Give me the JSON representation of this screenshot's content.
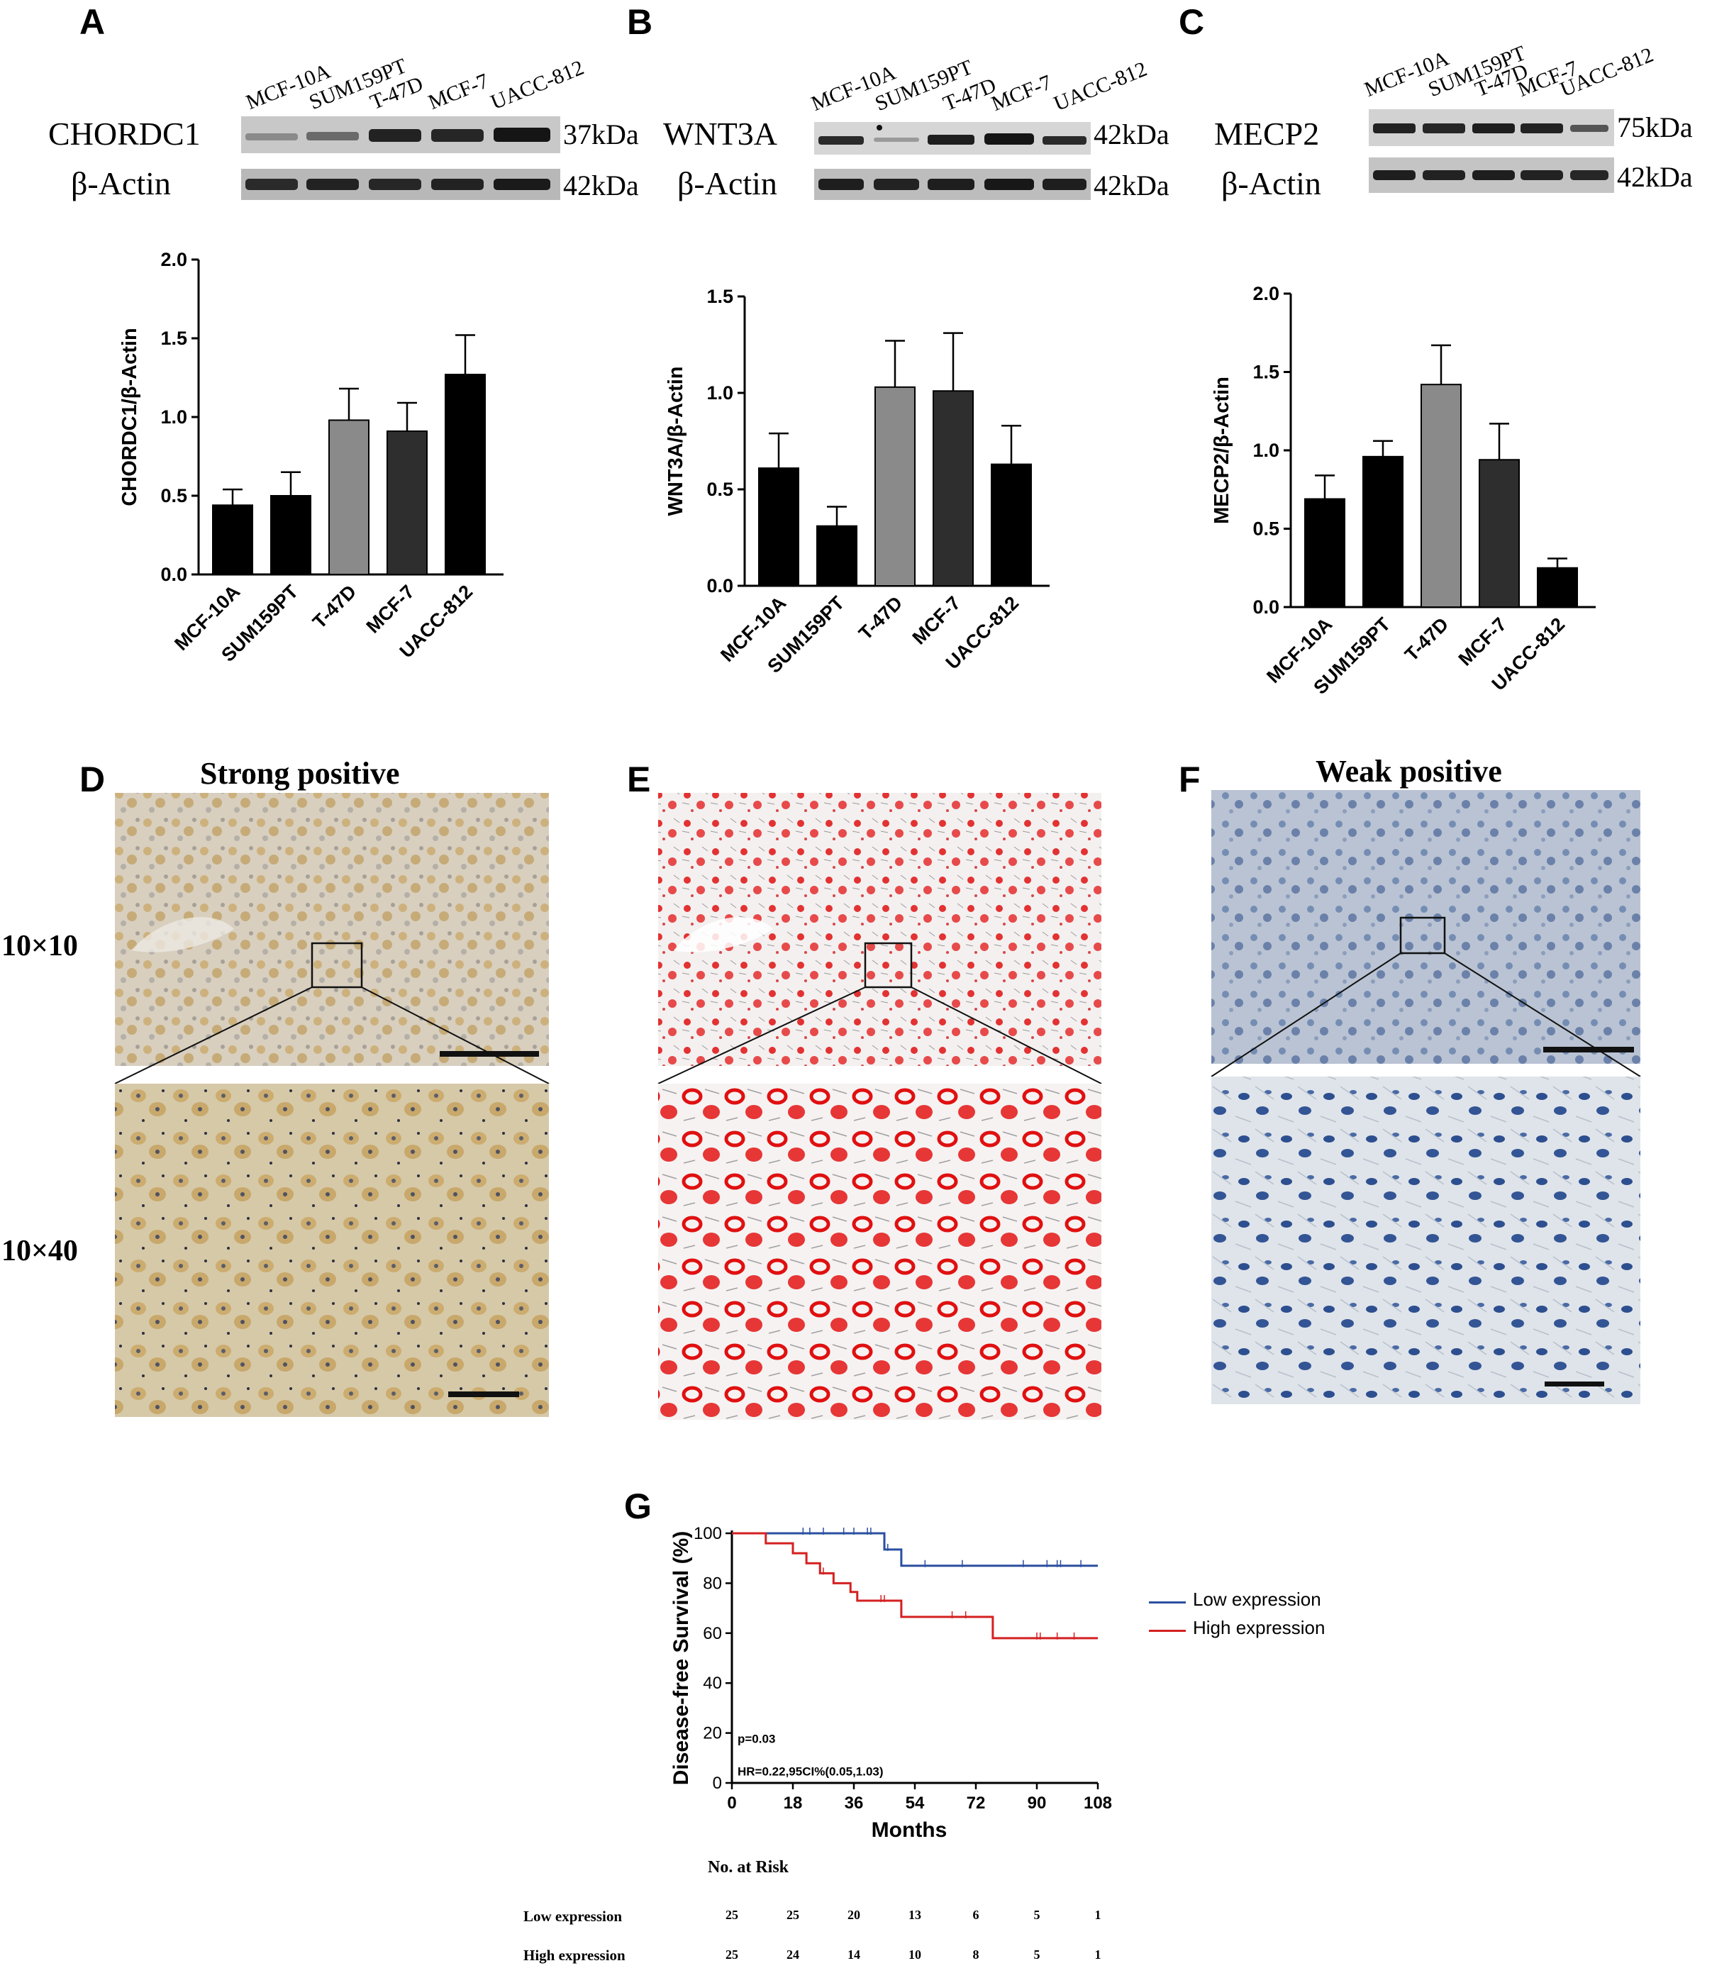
{
  "panels": {
    "A": {
      "label": "A",
      "protein": "CHORDC1",
      "protein_kda": "37kDa",
      "control": "β-Actin",
      "control_kda": "42kDa"
    },
    "B": {
      "label": "B",
      "protein": "WNT3A",
      "protein_kda": "42kDa",
      "control": "β-Actin",
      "control_kda": "42kDa"
    },
    "C": {
      "label": "C",
      "protein": "MECP2",
      "protein_kda": "75kDa",
      "control": "β-Actin",
      "control_kda": "42kDa"
    },
    "D": {
      "label": "D",
      "title": "Strong positive"
    },
    "E": {
      "label": "E"
    },
    "F": {
      "label": "F",
      "title": "Weak positive"
    },
    "G": {
      "label": "G"
    }
  },
  "cell_lines": [
    "MCF-10A",
    "SUM159PT",
    "T-47D",
    "MCF-7",
    "UACC-812"
  ],
  "magnifications": {
    "low": "10×10",
    "high": "10×40"
  },
  "colors": {
    "black_bar": "#000000",
    "grey_bar": "#8a8a8a",
    "dark_bar": "#2e2e2e",
    "low_expression": "#2b4fa0",
    "high_expression": "#d42020",
    "ihc_brown": "#c9a766",
    "ihc_red": "#e01010",
    "ihc_blue": "#4a6fa8"
  },
  "chart_data": [
    {
      "type": "bar",
      "panel": "A",
      "categories": [
        "MCF-10A",
        "SUM159PT",
        "T-47D",
        "MCF-7",
        "UACC-812"
      ],
      "values": [
        0.44,
        0.5,
        0.98,
        0.91,
        1.27
      ],
      "errors": [
        0.1,
        0.15,
        0.2,
        0.18,
        0.25
      ],
      "bar_colors": [
        "#000000",
        "#000000",
        "#8a8a8a",
        "#2e2e2e",
        "#000000"
      ],
      "ylabel": "CHORDC1/β-Actin",
      "ylim": [
        0,
        2.0
      ],
      "yticks": [
        "0.0",
        "0.5",
        "1.0",
        "1.5",
        "2.0"
      ]
    },
    {
      "type": "bar",
      "panel": "B",
      "categories": [
        "MCF-10A",
        "SUM159PT",
        "T-47D",
        "MCF-7",
        "UACC-812"
      ],
      "values": [
        0.61,
        0.31,
        1.03,
        1.01,
        0.63
      ],
      "errors": [
        0.18,
        0.1,
        0.24,
        0.3,
        0.2
      ],
      "bar_colors": [
        "#000000",
        "#000000",
        "#8a8a8a",
        "#2e2e2e",
        "#000000"
      ],
      "ylabel": "WNT3A/β-Actin",
      "ylim": [
        0,
        1.5
      ],
      "yticks": [
        "0.0",
        "0.5",
        "1.0",
        "1.5"
      ]
    },
    {
      "type": "bar",
      "panel": "C",
      "categories": [
        "MCF-10A",
        "SUM159PT",
        "T-47D",
        "MCF-7",
        "UACC-812"
      ],
      "values": [
        0.69,
        0.96,
        1.42,
        0.94,
        0.25
      ],
      "errors": [
        0.15,
        0.1,
        0.25,
        0.23,
        0.06
      ],
      "bar_colors": [
        "#000000",
        "#000000",
        "#8a8a8a",
        "#2e2e2e",
        "#000000"
      ],
      "ylabel": "MECP2/β-Actin",
      "ylim": [
        0,
        2.0
      ],
      "yticks": [
        "0.0",
        "0.5",
        "1.0",
        "1.5",
        "2.0"
      ]
    },
    {
      "type": "line",
      "panel": "G",
      "xlabel": "Months",
      "ylabel": "Disease-free Survival (%)",
      "xlim": [
        0,
        108
      ],
      "ylim": [
        0,
        100
      ],
      "xticks": [
        "0",
        "18",
        "36",
        "54",
        "72",
        "90",
        "108"
      ],
      "yticks": [
        "0",
        "20",
        "40",
        "60",
        "80",
        "100"
      ],
      "series": [
        {
          "name": "Low expression",
          "color": "#2b4fa0",
          "x": [
            0,
            45,
            45,
            50,
            50,
            108
          ],
          "y": [
            100,
            100,
            93.5,
            93.5,
            87,
            87
          ],
          "censor_x": [
            21,
            23,
            27,
            33,
            36,
            40,
            41,
            46,
            57,
            68,
            86,
            93,
            96,
            97,
            103
          ],
          "censor_y": [
            100,
            100,
            100,
            100,
            100,
            100,
            100,
            93.5,
            87,
            87,
            87,
            87,
            87,
            87,
            87
          ]
        },
        {
          "name": "High expression",
          "color": "#d42020",
          "x": [
            0,
            10,
            10,
            18,
            18,
            22,
            22,
            26,
            26,
            30,
            30,
            35,
            35,
            37,
            37,
            50,
            50,
            77,
            77,
            108
          ],
          "y": [
            100,
            100,
            96,
            96,
            92,
            92,
            88,
            88,
            84,
            84,
            80,
            80,
            76.5,
            76.5,
            73,
            73,
            66.5,
            66.5,
            58,
            58
          ],
          "censor_x": [
            27,
            44,
            45,
            65,
            69,
            90,
            91,
            96,
            101
          ],
          "censor_y": [
            84,
            73,
            73,
            66.5,
            66.5,
            58,
            58,
            58,
            58
          ]
        }
      ],
      "annotations": [
        "p=0.03",
        "HR=0.22,95CI%(0.05,1.03)"
      ],
      "legend": [
        "Low expression",
        "High expression"
      ],
      "legend_position": "right"
    }
  ],
  "risk_table": {
    "title": "No. at Risk",
    "rows": [
      {
        "label": "Low expression",
        "values": [
          "25",
          "25",
          "20",
          "13",
          "6",
          "5",
          "1"
        ]
      },
      {
        "label": "High expression",
        "values": [
          "25",
          "24",
          "14",
          "10",
          "8",
          "5",
          "1"
        ]
      }
    ]
  }
}
